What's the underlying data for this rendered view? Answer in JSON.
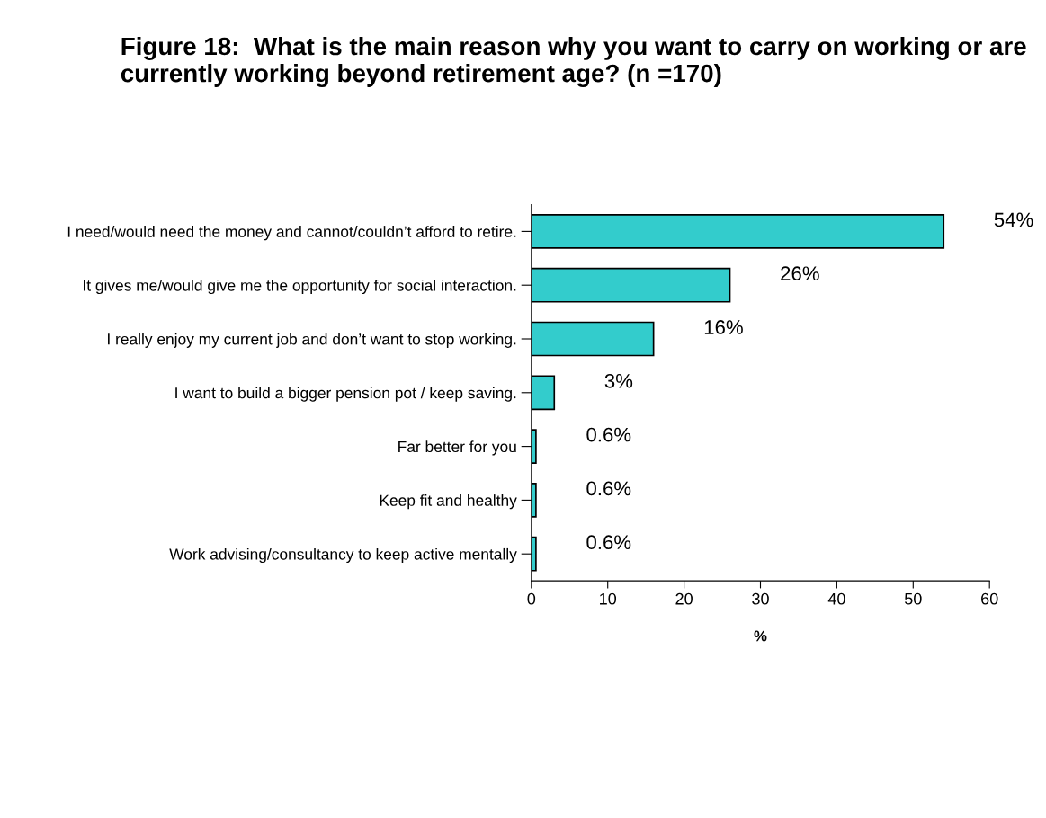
{
  "chart_data": {
    "type": "bar",
    "orientation": "horizontal",
    "title": "Figure 18:  What is the main reason why you want to carry on working or are currently working beyond retirement age? (n =170)",
    "categories": [
      "I need/would need the money and cannot/couldn’t afford to retire.",
      "It gives me/would give me the opportunity for social interaction.",
      "I really enjoy my current job and don’t want to stop working.",
      "I want to build a bigger pension pot / keep saving.",
      "Far better for you",
      "Keep fit and healthy",
      "Work advising/consultancy to keep active mentally"
    ],
    "values": [
      54,
      26,
      16,
      3,
      0.6,
      0.6,
      0.6
    ],
    "value_labels": [
      "54%",
      "26%",
      "16%",
      "3%",
      "0.6%",
      "0.6%",
      "0.6%"
    ],
    "color": "#33cccc",
    "xlabel": "%",
    "xlim": [
      0,
      60
    ],
    "xticks": [
      0,
      10,
      20,
      30,
      40,
      50,
      60
    ],
    "grid": false,
    "legend": false
  }
}
